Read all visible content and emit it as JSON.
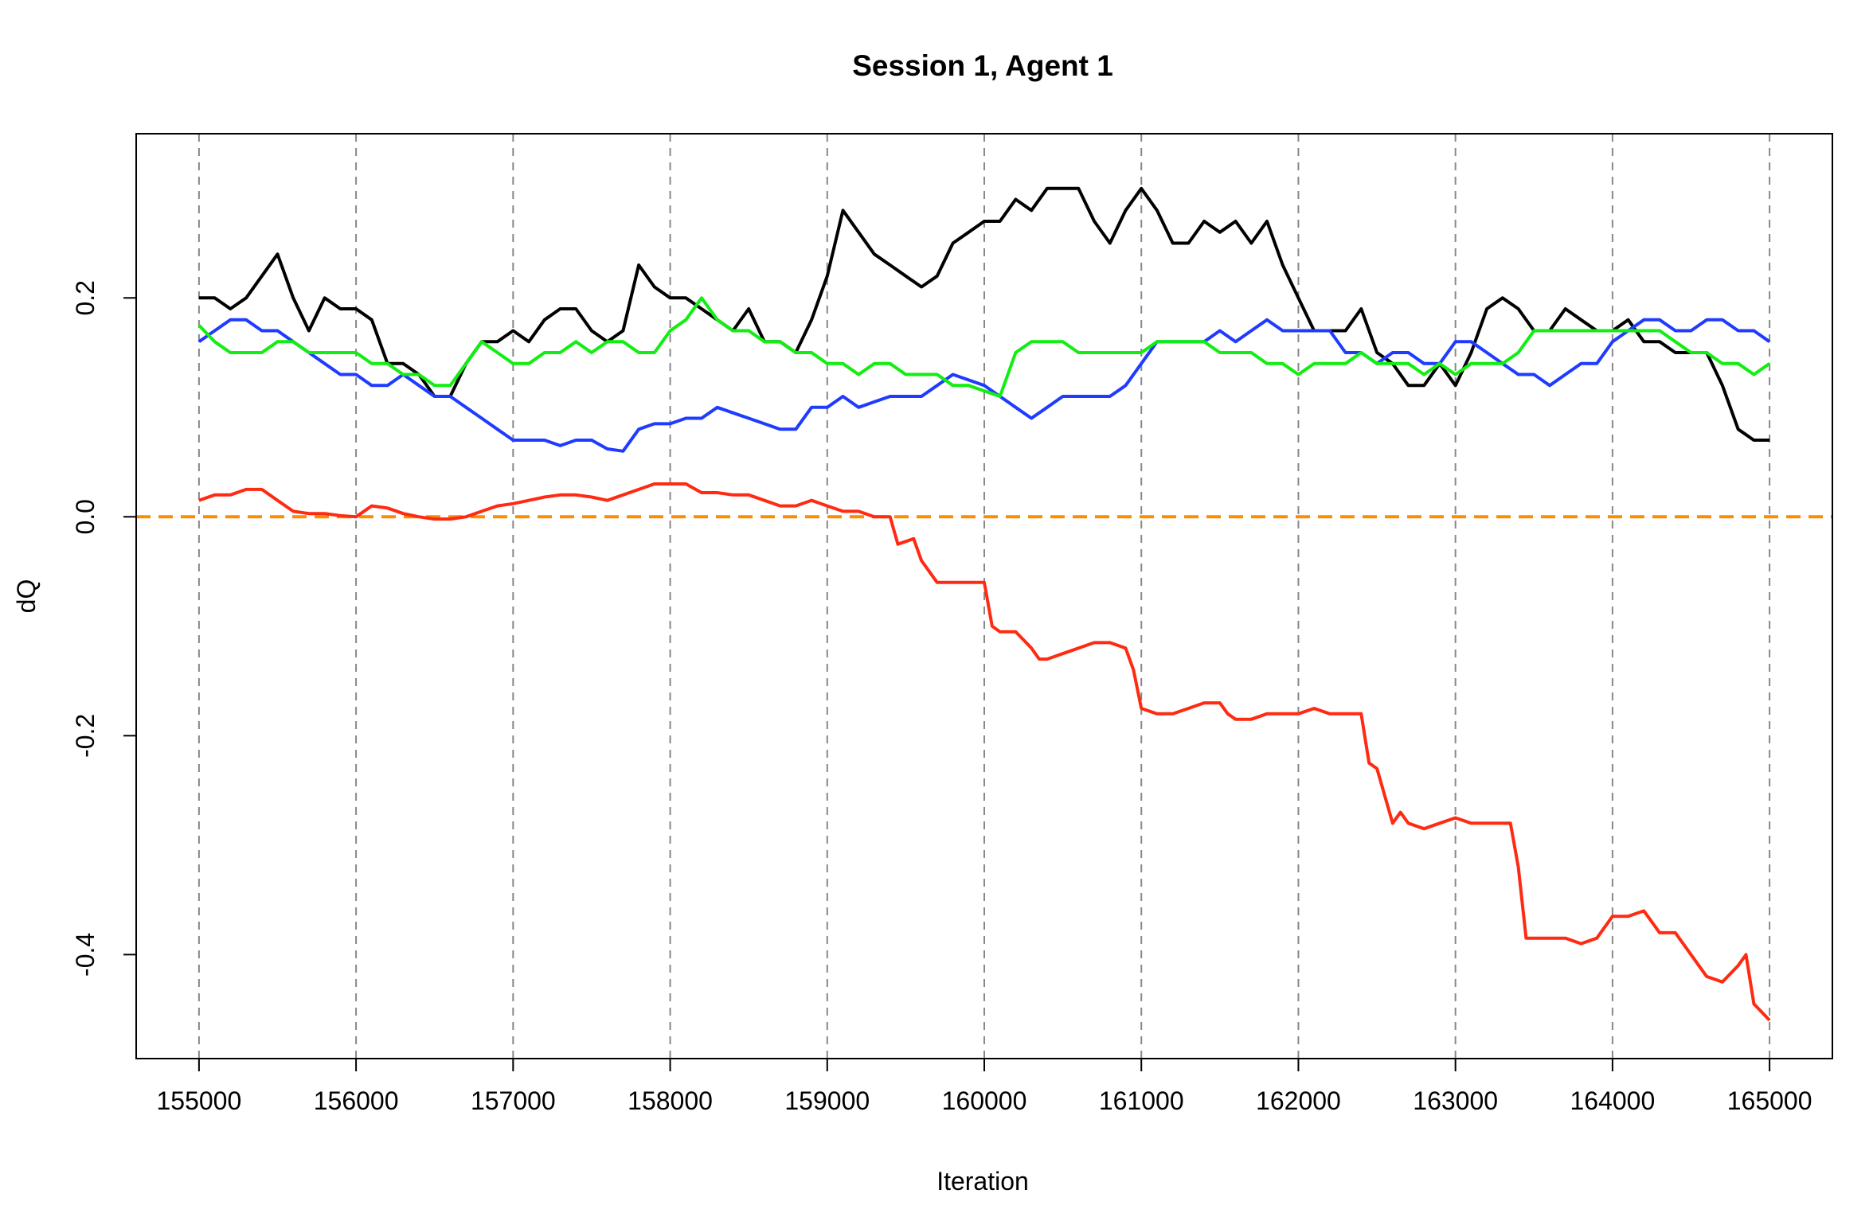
{
  "chart_data": {
    "type": "line",
    "title": "Session 1, Agent 1",
    "xlabel": "Iteration",
    "ylabel": "dQ",
    "xlim": [
      154600,
      165400
    ],
    "ylim": [
      -0.495,
      0.35
    ],
    "xticks": [
      "155000",
      "156000",
      "157000",
      "158000",
      "159000",
      "160000",
      "161000",
      "162000",
      "163000",
      "164000",
      "165000"
    ],
    "xtick_values": [
      155000,
      156000,
      157000,
      158000,
      159000,
      160000,
      161000,
      162000,
      163000,
      164000,
      165000
    ],
    "yticks": [
      "-0.4",
      "-0.2",
      "0.0",
      "0.2"
    ],
    "ytick_values": [
      -0.4,
      -0.2,
      0.0,
      0.2
    ],
    "grid": "vertical dashed at x ticks",
    "legend": "none",
    "reference_line": {
      "y": 0.0,
      "color": "#FF8C00",
      "style": "dashed"
    },
    "series": [
      {
        "color": "#000000",
        "x": [
          155000,
          155100,
          155200,
          155300,
          155400,
          155500,
          155600,
          155700,
          155800,
          155900,
          156000,
          156100,
          156200,
          156300,
          156400,
          156500,
          156600,
          156700,
          156800,
          156900,
          157000,
          157100,
          157200,
          157300,
          157400,
          157500,
          157600,
          157700,
          157800,
          157900,
          158000,
          158100,
          158200,
          158300,
          158400,
          158500,
          158600,
          158700,
          158800,
          158900,
          159000,
          159100,
          159200,
          159300,
          159400,
          159500,
          159600,
          159700,
          159800,
          159900,
          160000,
          160100,
          160200,
          160300,
          160400,
          160500,
          160600,
          160700,
          160800,
          160900,
          161000,
          161100,
          161200,
          161300,
          161400,
          161500,
          161600,
          161700,
          161800,
          161900,
          162000,
          162100,
          162200,
          162300,
          162400,
          162500,
          162600,
          162700,
          162800,
          162900,
          163000,
          163100,
          163200,
          163300,
          163400,
          163500,
          163600,
          163700,
          163800,
          163900,
          164000,
          164100,
          164200,
          164300,
          164400,
          164500,
          164600,
          164700,
          164800,
          164900,
          165000
        ],
        "y": [
          0.2,
          0.2,
          0.19,
          0.2,
          0.22,
          0.24,
          0.2,
          0.17,
          0.2,
          0.19,
          0.19,
          0.18,
          0.14,
          0.14,
          0.13,
          0.11,
          0.11,
          0.14,
          0.16,
          0.16,
          0.17,
          0.16,
          0.18,
          0.19,
          0.19,
          0.17,
          0.16,
          0.17,
          0.23,
          0.21,
          0.2,
          0.2,
          0.19,
          0.18,
          0.17,
          0.19,
          0.16,
          0.16,
          0.15,
          0.18,
          0.22,
          0.28,
          0.26,
          0.24,
          0.23,
          0.22,
          0.21,
          0.22,
          0.25,
          0.26,
          0.27,
          0.27,
          0.29,
          0.28,
          0.3,
          0.3,
          0.3,
          0.27,
          0.25,
          0.28,
          0.3,
          0.28,
          0.25,
          0.25,
          0.27,
          0.26,
          0.27,
          0.25,
          0.27,
          0.23,
          0.2,
          0.17,
          0.17,
          0.17,
          0.19,
          0.15,
          0.14,
          0.12,
          0.12,
          0.14,
          0.12,
          0.15,
          0.19,
          0.2,
          0.19,
          0.17,
          0.17,
          0.19,
          0.18,
          0.17,
          0.17,
          0.18,
          0.16,
          0.16,
          0.15,
          0.15,
          0.15,
          0.12,
          0.08,
          0.07,
          0.07
        ]
      },
      {
        "color": "#1F3BFF",
        "x": [
          155000,
          155100,
          155200,
          155300,
          155400,
          155500,
          155600,
          155700,
          155800,
          155900,
          156000,
          156100,
          156200,
          156300,
          156400,
          156500,
          156600,
          156700,
          156800,
          156900,
          157000,
          157100,
          157200,
          157300,
          157400,
          157500,
          157600,
          157700,
          157800,
          157900,
          158000,
          158100,
          158200,
          158300,
          158400,
          158500,
          158600,
          158700,
          158800,
          158900,
          159000,
          159100,
          159200,
          159300,
          159400,
          159500,
          159600,
          159700,
          159800,
          159900,
          160000,
          160100,
          160200,
          160300,
          160400,
          160500,
          160600,
          160700,
          160800,
          160900,
          161000,
          161100,
          161200,
          161300,
          161400,
          161500,
          161600,
          161700,
          161800,
          161900,
          162000,
          162100,
          162200,
          162300,
          162400,
          162500,
          162600,
          162700,
          162800,
          162900,
          163000,
          163100,
          163200,
          163300,
          163400,
          163500,
          163600,
          163700,
          163800,
          163900,
          164000,
          164100,
          164200,
          164300,
          164400,
          164500,
          164600,
          164700,
          164800,
          164900,
          165000
        ],
        "y": [
          0.16,
          0.17,
          0.18,
          0.18,
          0.17,
          0.17,
          0.16,
          0.15,
          0.14,
          0.13,
          0.13,
          0.12,
          0.12,
          0.13,
          0.12,
          0.11,
          0.11,
          0.1,
          0.09,
          0.08,
          0.07,
          0.07,
          0.07,
          0.065,
          0.07,
          0.07,
          0.062,
          0.06,
          0.08,
          0.085,
          0.085,
          0.09,
          0.09,
          0.1,
          0.095,
          0.09,
          0.085,
          0.08,
          0.08,
          0.1,
          0.1,
          0.11,
          0.1,
          0.105,
          0.11,
          0.11,
          0.11,
          0.12,
          0.13,
          0.125,
          0.12,
          0.11,
          0.1,
          0.09,
          0.1,
          0.11,
          0.11,
          0.11,
          0.11,
          0.12,
          0.14,
          0.16,
          0.16,
          0.16,
          0.16,
          0.17,
          0.16,
          0.17,
          0.18,
          0.17,
          0.17,
          0.17,
          0.17,
          0.15,
          0.15,
          0.14,
          0.15,
          0.15,
          0.14,
          0.14,
          0.16,
          0.16,
          0.15,
          0.14,
          0.13,
          0.13,
          0.12,
          0.13,
          0.14,
          0.14,
          0.16,
          0.17,
          0.18,
          0.18,
          0.17,
          0.17,
          0.18,
          0.18,
          0.17,
          0.17,
          0.16
        ]
      },
      {
        "color": "#11EE11",
        "x": [
          155000,
          155100,
          155200,
          155300,
          155400,
          155500,
          155600,
          155700,
          155800,
          155900,
          156000,
          156100,
          156200,
          156300,
          156400,
          156500,
          156600,
          156700,
          156800,
          156900,
          157000,
          157100,
          157200,
          157300,
          157400,
          157500,
          157600,
          157700,
          157800,
          157900,
          158000,
          158100,
          158200,
          158300,
          158400,
          158500,
          158600,
          158700,
          158800,
          158900,
          159000,
          159100,
          159200,
          159300,
          159400,
          159500,
          159600,
          159700,
          159800,
          159900,
          160000,
          160100,
          160200,
          160300,
          160400,
          160500,
          160600,
          160700,
          160800,
          160900,
          161000,
          161100,
          161200,
          161300,
          161400,
          161500,
          161600,
          161700,
          161800,
          161900,
          162000,
          162100,
          162200,
          162300,
          162400,
          162500,
          162600,
          162700,
          162800,
          162900,
          163000,
          163100,
          163200,
          163300,
          163400,
          163500,
          163600,
          163700,
          163800,
          163900,
          164000,
          164100,
          164200,
          164300,
          164400,
          164500,
          164600,
          164700,
          164800,
          164900,
          165000
        ],
        "y": [
          0.175,
          0.16,
          0.15,
          0.15,
          0.15,
          0.16,
          0.16,
          0.15,
          0.15,
          0.15,
          0.15,
          0.14,
          0.14,
          0.13,
          0.13,
          0.12,
          0.12,
          0.14,
          0.16,
          0.15,
          0.14,
          0.14,
          0.15,
          0.15,
          0.16,
          0.15,
          0.16,
          0.16,
          0.15,
          0.15,
          0.17,
          0.18,
          0.2,
          0.18,
          0.17,
          0.17,
          0.16,
          0.16,
          0.15,
          0.15,
          0.14,
          0.14,
          0.13,
          0.14,
          0.14,
          0.13,
          0.13,
          0.13,
          0.12,
          0.12,
          0.115,
          0.11,
          0.15,
          0.16,
          0.16,
          0.16,
          0.15,
          0.15,
          0.15,
          0.15,
          0.15,
          0.16,
          0.16,
          0.16,
          0.16,
          0.15,
          0.15,
          0.15,
          0.14,
          0.14,
          0.13,
          0.14,
          0.14,
          0.14,
          0.15,
          0.14,
          0.14,
          0.14,
          0.13,
          0.14,
          0.13,
          0.14,
          0.14,
          0.14,
          0.15,
          0.17,
          0.17,
          0.17,
          0.17,
          0.17,
          0.17,
          0.17,
          0.17,
          0.17,
          0.16,
          0.15,
          0.15,
          0.14,
          0.14,
          0.13,
          0.14
        ]
      },
      {
        "color": "#FF2A12",
        "x": [
          155000,
          155100,
          155200,
          155300,
          155400,
          155500,
          155600,
          155700,
          155800,
          155900,
          156000,
          156100,
          156200,
          156300,
          156400,
          156500,
          156600,
          156700,
          156800,
          156900,
          157000,
          157100,
          157200,
          157300,
          157400,
          157500,
          157600,
          157700,
          157800,
          157900,
          158000,
          158100,
          158200,
          158300,
          158400,
          158500,
          158600,
          158700,
          158800,
          158900,
          159000,
          159100,
          159200,
          159300,
          159400,
          159450,
          159550,
          159600,
          159700,
          159800,
          159900,
          160000,
          160050,
          160100,
          160200,
          160300,
          160350,
          160400,
          160500,
          160600,
          160700,
          160800,
          160900,
          160950,
          161000,
          161100,
          161200,
          161300,
          161400,
          161500,
          161550,
          161600,
          161700,
          161800,
          161900,
          162000,
          162100,
          162200,
          162300,
          162400,
          162450,
          162500,
          162600,
          162650,
          162700,
          162800,
          162900,
          163000,
          163100,
          163200,
          163350,
          163400,
          163450,
          163500,
          163600,
          163700,
          163800,
          163900,
          164000,
          164100,
          164200,
          164300,
          164400,
          164500,
          164600,
          164700,
          164800,
          164850,
          164900,
          165000
        ],
        "y": [
          0.015,
          0.02,
          0.02,
          0.025,
          0.025,
          0.015,
          0.005,
          0.003,
          0.003,
          0.001,
          0.0,
          0.01,
          0.008,
          0.003,
          0.0,
          -0.002,
          -0.002,
          0.0,
          0.005,
          0.01,
          0.012,
          0.015,
          0.018,
          0.02,
          0.02,
          0.018,
          0.015,
          0.02,
          0.025,
          0.03,
          0.03,
          0.03,
          0.022,
          0.022,
          0.02,
          0.02,
          0.015,
          0.01,
          0.01,
          0.015,
          0.01,
          0.005,
          0.005,
          0.0,
          0.0,
          -0.025,
          -0.02,
          -0.04,
          -0.06,
          -0.06,
          -0.06,
          -0.06,
          -0.1,
          -0.105,
          -0.105,
          -0.12,
          -0.13,
          -0.13,
          -0.125,
          -0.12,
          -0.115,
          -0.115,
          -0.12,
          -0.14,
          -0.175,
          -0.18,
          -0.18,
          -0.175,
          -0.17,
          -0.17,
          -0.18,
          -0.185,
          -0.185,
          -0.18,
          -0.18,
          -0.18,
          -0.175,
          -0.18,
          -0.18,
          -0.18,
          -0.225,
          -0.23,
          -0.28,
          -0.27,
          -0.28,
          -0.285,
          -0.28,
          -0.275,
          -0.28,
          -0.28,
          -0.28,
          -0.32,
          -0.385,
          -0.385,
          -0.385,
          -0.385,
          -0.39,
          -0.385,
          -0.365,
          -0.365,
          -0.36,
          -0.38,
          -0.38,
          -0.4,
          -0.42,
          -0.425,
          -0.41,
          -0.4,
          -0.445,
          -0.46
        ]
      }
    ]
  }
}
